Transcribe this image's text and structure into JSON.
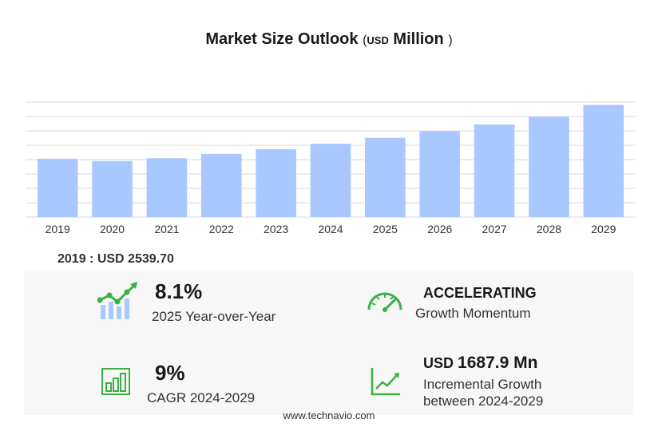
{
  "title": {
    "main": "Market Size Outlook",
    "open": "(",
    "unit_small": "USD",
    "unit": "Million",
    "close": ")"
  },
  "chart_data": {
    "type": "bar",
    "categories": [
      "2019",
      "2020",
      "2021",
      "2022",
      "2023",
      "2024",
      "2025",
      "2026",
      "2027",
      "2028",
      "2029"
    ],
    "values": [
      2539.7,
      2440,
      2560,
      2750,
      2950,
      3190,
      3450,
      3730,
      4030,
      4360,
      4880
    ],
    "ylim": [
      0,
      5000
    ],
    "grid": true,
    "bar_color": "#a8c8ff",
    "xlabel": "",
    "ylabel": "",
    "title": "Market Size Outlook"
  },
  "base_year": "2019 : USD  2539.70",
  "stats": {
    "yoy": {
      "value": "8.1%",
      "label": "2025 Year-over-Year"
    },
    "momentum": {
      "value": "ACCELERATING",
      "label": "Growth Momentum"
    },
    "cagr": {
      "value": "9%",
      "label": "CAGR 2024-2029"
    },
    "incremental": {
      "value_unit": "USD",
      "value": "1687.9 Mn",
      "label1": "Incremental Growth",
      "label2": "between 2024-2029"
    }
  },
  "colors": {
    "accent_green": "#3cb043",
    "bar": "#a8c8ff"
  },
  "footer": "www.technavio.com"
}
